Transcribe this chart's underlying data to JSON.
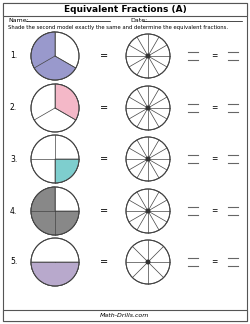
{
  "title": "Equivalent Fractions (A)",
  "name_label": "Name:",
  "date_label": "Date:",
  "instruction": "Shade the second model exactly the same and determine the equivalent fractions.",
  "footer": "Math-Drills.com",
  "background": "#ffffff",
  "problems": [
    {
      "number": "1.",
      "left_circle": {
        "total_slices": 3,
        "shaded_slices": 2,
        "color": "#9999cc",
        "start_angle": 90
      },
      "right_circle": {
        "total_slices": 12,
        "shaded_slices": 0
      }
    },
    {
      "number": "2.",
      "left_circle": {
        "total_slices": 3,
        "shaded_slices": 1,
        "color": "#f4b8c8",
        "start_angle": -30
      },
      "right_circle": {
        "total_slices": 12,
        "shaded_slices": 0
      }
    },
    {
      "number": "3.",
      "left_circle": {
        "total_slices": 4,
        "shaded_slices": 1,
        "color": "#7ecece",
        "start_angle": 270
      },
      "right_circle": {
        "total_slices": 12,
        "shaded_slices": 0
      }
    },
    {
      "number": "4.",
      "left_circle": {
        "total_slices": 4,
        "shaded_slices": 3,
        "color": "#888888",
        "start_angle": 90
      },
      "right_circle": {
        "total_slices": 12,
        "shaded_slices": 0
      }
    },
    {
      "number": "5.",
      "left_circle": {
        "total_slices": 2,
        "shaded_slices": 1,
        "color": "#b8a9cc",
        "start_angle": 180
      },
      "right_circle": {
        "total_slices": 8,
        "shaded_slices": 0
      }
    }
  ]
}
